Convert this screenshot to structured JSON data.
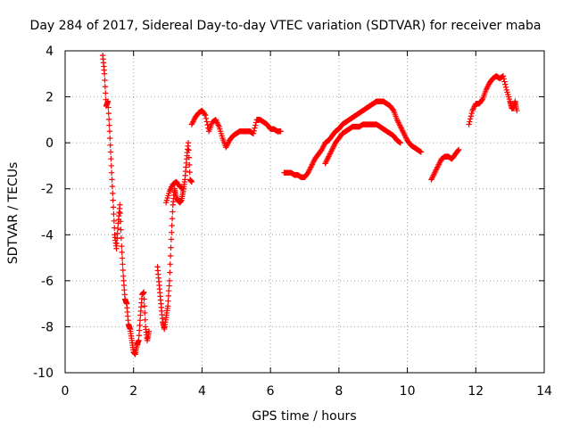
{
  "chart_data": {
    "type": "scatter",
    "title": "Day 284 of 2017, Sidereal Day-to-day VTEC variation (SDTVAR) for receiver maba",
    "xlabel": "GPS time / hours",
    "ylabel": "SDTVAR / TECUs",
    "xlim": [
      0,
      14
    ],
    "ylim": [
      -10,
      4
    ],
    "xticks": [
      "0",
      "2",
      "4",
      "6",
      "8",
      "10",
      "12",
      "14"
    ],
    "yticks": [
      "4",
      "2",
      "0",
      "-2",
      "-4",
      "-6",
      "-8",
      "-10"
    ],
    "grid": true,
    "marker": "+",
    "color": "#ff0000",
    "segments": [
      {
        "name": "seg1",
        "x": [
          1.1,
          1.15,
          1.2,
          1.25,
          1.3,
          1.35,
          1.4,
          1.45,
          1.5,
          1.55,
          1.6,
          1.65,
          1.7,
          1.75,
          1.8,
          1.85,
          1.9,
          1.95,
          2.0,
          2.05,
          2.1,
          2.15,
          2.2,
          2.25,
          2.3,
          2.35,
          2.4,
          2.45
        ],
        "y": [
          3.8,
          3.0,
          1.6,
          1.8,
          0.5,
          -1.0,
          -2.5,
          -4.0,
          -4.6,
          -3.5,
          -2.7,
          -4.5,
          -5.8,
          -6.8,
          -7.0,
          -7.9,
          -8.1,
          -8.6,
          -9.1,
          -9.2,
          -8.8,
          -8.6,
          -7.5,
          -6.6,
          -6.5,
          -8.0,
          -8.6,
          -8.2
        ]
      },
      {
        "name": "seg2",
        "x": [
          2.7,
          2.75,
          2.8,
          2.85,
          2.9,
          2.95,
          3.0,
          3.05,
          3.1,
          3.15,
          3.2,
          3.25,
          3.3,
          3.35,
          3.4,
          3.45,
          3.5,
          3.55,
          3.6,
          3.65,
          3.7
        ],
        "y": [
          -5.4,
          -6.2,
          -7.0,
          -7.8,
          -8.1,
          -7.6,
          -7.1,
          -6.0,
          -4.2,
          -2.7,
          -2.0,
          -2.4,
          -2.5,
          -2.6,
          -2.5,
          -2.1,
          -1.6,
          -0.7,
          0.0,
          -1.6,
          -1.7
        ]
      },
      {
        "name": "seg3",
        "x": [
          2.95,
          3.05,
          3.15,
          3.25,
          3.35,
          3.45
        ],
        "y": [
          -2.6,
          -2.1,
          -1.8,
          -1.7,
          -1.9,
          -2.0
        ]
      },
      {
        "name": "seg4",
        "x": [
          3.7,
          3.8,
          3.9,
          4.0,
          4.1,
          4.2,
          4.3,
          4.4,
          4.5,
          4.6,
          4.7,
          4.8,
          4.9,
          5.0,
          5.1,
          5.2,
          5.3,
          5.4,
          5.5,
          5.6,
          5.7,
          5.8,
          5.9,
          6.0,
          6.1,
          6.2,
          6.3
        ],
        "y": [
          0.8,
          1.1,
          1.3,
          1.4,
          1.2,
          0.5,
          0.9,
          1.0,
          0.7,
          0.2,
          -0.2,
          0.1,
          0.3,
          0.4,
          0.5,
          0.5,
          0.5,
          0.5,
          0.4,
          1.0,
          1.0,
          0.9,
          0.8,
          0.6,
          0.6,
          0.5,
          0.5
        ]
      },
      {
        "name": "seg5",
        "x": [
          6.4,
          6.5,
          6.6,
          6.7,
          6.8,
          6.9,
          7.0,
          7.1,
          7.2,
          7.3,
          7.4,
          7.5,
          7.6,
          7.7,
          7.8,
          7.9,
          8.0,
          8.1,
          8.2,
          8.3,
          8.4,
          8.5,
          8.6,
          8.7,
          8.8,
          8.9,
          9.0,
          9.1,
          9.2,
          9.3,
          9.4,
          9.5,
          9.6,
          9.7,
          9.8,
          9.9,
          10.0,
          10.1,
          10.2,
          10.3,
          10.4
        ],
        "y": [
          -1.3,
          -1.3,
          -1.3,
          -1.4,
          -1.4,
          -1.5,
          -1.5,
          -1.3,
          -1.0,
          -0.7,
          -0.5,
          -0.3,
          0.0,
          0.1,
          0.3,
          0.5,
          0.6,
          0.8,
          0.9,
          1.0,
          1.1,
          1.2,
          1.3,
          1.4,
          1.5,
          1.6,
          1.7,
          1.8,
          1.8,
          1.8,
          1.7,
          1.6,
          1.4,
          1.0,
          0.7,
          0.4,
          0.1,
          -0.1,
          -0.2,
          -0.3,
          -0.4
        ]
      },
      {
        "name": "seg6",
        "x": [
          7.6,
          7.7,
          7.8,
          7.9,
          8.0,
          8.1,
          8.2,
          8.3,
          8.4,
          8.5,
          8.6,
          8.7,
          8.8,
          8.9,
          9.0,
          9.1,
          9.2,
          9.3,
          9.4,
          9.5,
          9.6,
          9.7,
          9.8
        ],
        "y": [
          -0.9,
          -0.6,
          -0.3,
          0.0,
          0.2,
          0.4,
          0.5,
          0.6,
          0.7,
          0.7,
          0.7,
          0.8,
          0.8,
          0.8,
          0.8,
          0.8,
          0.7,
          0.6,
          0.5,
          0.4,
          0.3,
          0.1,
          0.0
        ]
      },
      {
        "name": "seg7",
        "x": [
          10.7,
          10.8,
          10.9,
          11.0,
          11.1,
          11.2,
          11.3,
          11.4,
          11.5
        ],
        "y": [
          -1.6,
          -1.3,
          -1.0,
          -0.7,
          -0.6,
          -0.6,
          -0.7,
          -0.5,
          -0.3
        ]
      },
      {
        "name": "seg8",
        "x": [
          11.8,
          11.9,
          12.0,
          12.1,
          12.2,
          12.3,
          12.4,
          12.5,
          12.6,
          12.7,
          12.8,
          12.9,
          13.0,
          13.05,
          13.1,
          13.15,
          13.2
        ],
        "y": [
          0.8,
          1.4,
          1.7,
          1.7,
          1.9,
          2.3,
          2.6,
          2.8,
          2.9,
          2.8,
          2.9,
          2.3,
          1.8,
          1.5,
          1.5,
          1.8,
          1.4
        ]
      }
    ]
  }
}
